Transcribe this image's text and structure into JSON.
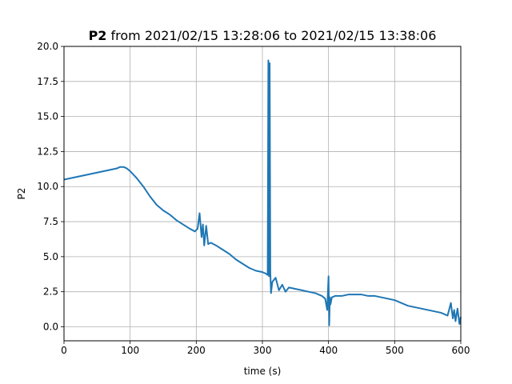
{
  "chart_data": {
    "type": "line",
    "title_bold": "P2",
    "title_rest": " from 2021/02/15 13:28:06 to 2021/02/15 13:38:06",
    "xlabel": "time (s)",
    "ylabel": "P2",
    "xlim": [
      0,
      600
    ],
    "ylim": [
      -1,
      20
    ],
    "grid": true,
    "line_color": "#1f77b4",
    "x_ticks": [
      {
        "value": 0,
        "label": "0"
      },
      {
        "value": 100,
        "label": "100"
      },
      {
        "value": 200,
        "label": "200"
      },
      {
        "value": 300,
        "label": "300"
      },
      {
        "value": 400,
        "label": "400"
      },
      {
        "value": 500,
        "label": "500"
      },
      {
        "value": 600,
        "label": "600"
      }
    ],
    "y_ticks": [
      {
        "value": 0,
        "label": "0.0"
      },
      {
        "value": 2.5,
        "label": "2.5"
      },
      {
        "value": 5,
        "label": "5.0"
      },
      {
        "value": 7.5,
        "label": "7.5"
      },
      {
        "value": 10,
        "label": "10.0"
      },
      {
        "value": 12.5,
        "label": "12.5"
      },
      {
        "value": 15,
        "label": "15.0"
      },
      {
        "value": 17.5,
        "label": "17.5"
      },
      {
        "value": 20,
        "label": "20.0"
      }
    ],
    "series": [
      {
        "x": [
          0,
          10,
          20,
          30,
          40,
          50,
          60,
          70,
          80,
          85,
          90,
          95,
          100,
          110,
          120,
          130,
          140,
          150,
          160,
          170,
          180,
          190,
          198,
          202,
          205,
          208,
          210,
          212,
          215,
          218,
          222,
          230,
          240,
          250,
          260,
          270,
          280,
          290,
          300,
          305,
          308,
          309,
          310,
          311,
          312,
          313,
          315,
          320,
          325,
          330,
          335,
          340,
          350,
          360,
          370,
          380,
          390,
          395,
          398,
          400,
          401,
          402,
          403,
          405,
          410,
          420,
          430,
          440,
          450,
          460,
          470,
          480,
          490,
          500,
          510,
          520,
          530,
          540,
          550,
          560,
          570,
          575,
          580,
          585,
          588,
          590,
          592,
          595,
          598,
          600
        ],
        "y": [
          10.5,
          10.6,
          10.7,
          10.8,
          10.9,
          11.0,
          11.1,
          11.2,
          11.3,
          11.4,
          11.4,
          11.3,
          11.1,
          10.6,
          10.0,
          9.3,
          8.7,
          8.3,
          8.0,
          7.6,
          7.3,
          7.0,
          6.8,
          7.0,
          8.1,
          6.4,
          7.3,
          5.8,
          7.2,
          5.9,
          6.0,
          5.8,
          5.5,
          5.2,
          4.8,
          4.5,
          4.2,
          4.0,
          3.9,
          3.8,
          3.7,
          19.0,
          3.6,
          18.8,
          3.9,
          2.4,
          3.2,
          3.5,
          2.6,
          3.0,
          2.5,
          2.8,
          2.7,
          2.6,
          2.5,
          2.4,
          2.2,
          2.0,
          1.2,
          3.6,
          0.1,
          2.1,
          1.6,
          2.1,
          2.2,
          2.2,
          2.3,
          2.3,
          2.3,
          2.2,
          2.2,
          2.1,
          2.0,
          1.9,
          1.7,
          1.5,
          1.4,
          1.3,
          1.2,
          1.1,
          1.0,
          0.9,
          0.8,
          1.7,
          0.6,
          1.2,
          0.4,
          1.3,
          0.2,
          0.7
        ]
      }
    ]
  }
}
